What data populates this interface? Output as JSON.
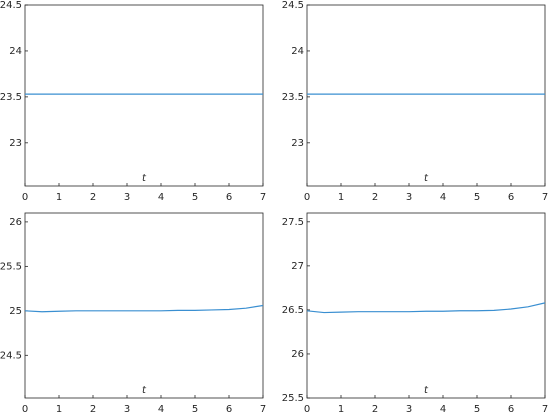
{
  "chart_data": [
    {
      "type": "line",
      "xlabel": "t",
      "x": [
        0,
        0.5,
        1,
        1.5,
        2,
        2.5,
        3,
        3.5,
        4,
        4.5,
        5,
        5.5,
        6,
        6.5,
        7
      ],
      "series": [
        {
          "color": "#3a8fd1",
          "values": [
            23.53,
            23.53,
            23.53,
            23.53,
            23.53,
            23.53,
            23.53,
            23.53,
            23.53,
            23.53,
            23.53,
            23.53,
            23.53,
            23.53,
            23.53
          ]
        }
      ],
      "xlim": [
        0,
        7
      ],
      "xticks": [
        0,
        1,
        2,
        3,
        4,
        5,
        6,
        7
      ],
      "ylim": [
        22.53,
        24.5
      ],
      "yticks": [
        23,
        23.5,
        24,
        24.5
      ]
    },
    {
      "type": "line",
      "xlabel": "t",
      "x": [
        0,
        0.5,
        1,
        1.5,
        2,
        2.5,
        3,
        3.5,
        4,
        4.5,
        5,
        5.5,
        6,
        6.5,
        7
      ],
      "series": [
        {
          "color": "#3a8fd1",
          "values": [
            23.53,
            23.53,
            23.53,
            23.53,
            23.53,
            23.53,
            23.53,
            23.53,
            23.53,
            23.53,
            23.53,
            23.53,
            23.53,
            23.53,
            23.53
          ]
        }
      ],
      "xlim": [
        0,
        7
      ],
      "xticks": [
        0,
        1,
        2,
        3,
        4,
        5,
        6,
        7
      ],
      "ylim": [
        22.53,
        24.5
      ],
      "yticks": [
        23,
        23.5,
        24,
        24.5
      ]
    },
    {
      "type": "line",
      "xlabel": "t",
      "x": [
        0,
        0.5,
        1,
        1.5,
        2,
        2.5,
        3,
        3.5,
        4,
        4.5,
        5,
        5.5,
        6,
        6.5,
        7
      ],
      "series": [
        {
          "color": "#3a8fd1",
          "values": [
            25.0,
            24.99,
            24.995,
            25.0,
            25.0,
            25.0,
            25.0,
            25.0,
            25.0,
            25.005,
            25.005,
            25.01,
            25.015,
            25.03,
            25.06
          ]
        }
      ],
      "xlim": [
        0,
        7
      ],
      "xticks": [
        0,
        1,
        2,
        3,
        4,
        5,
        6,
        7
      ],
      "ylim": [
        24.02,
        26.1
      ],
      "yticks": [
        24.5,
        25,
        25.5,
        26
      ]
    },
    {
      "type": "line",
      "xlabel": "t",
      "x": [
        0,
        0.5,
        1,
        1.5,
        2,
        2.5,
        3,
        3.5,
        4,
        4.5,
        5,
        5.5,
        6,
        6.5,
        7
      ],
      "series": [
        {
          "color": "#3a8fd1",
          "values": [
            26.49,
            26.47,
            26.475,
            26.48,
            26.48,
            26.48,
            26.48,
            26.485,
            26.485,
            26.49,
            26.49,
            26.495,
            26.51,
            26.535,
            26.58
          ]
        }
      ],
      "xlim": [
        0,
        7
      ],
      "xticks": [
        0,
        1,
        2,
        3,
        4,
        5,
        6,
        7
      ],
      "ylim": [
        25.5,
        27.6
      ],
      "yticks": [
        25.5,
        26,
        26.5,
        27,
        27.5
      ]
    }
  ]
}
